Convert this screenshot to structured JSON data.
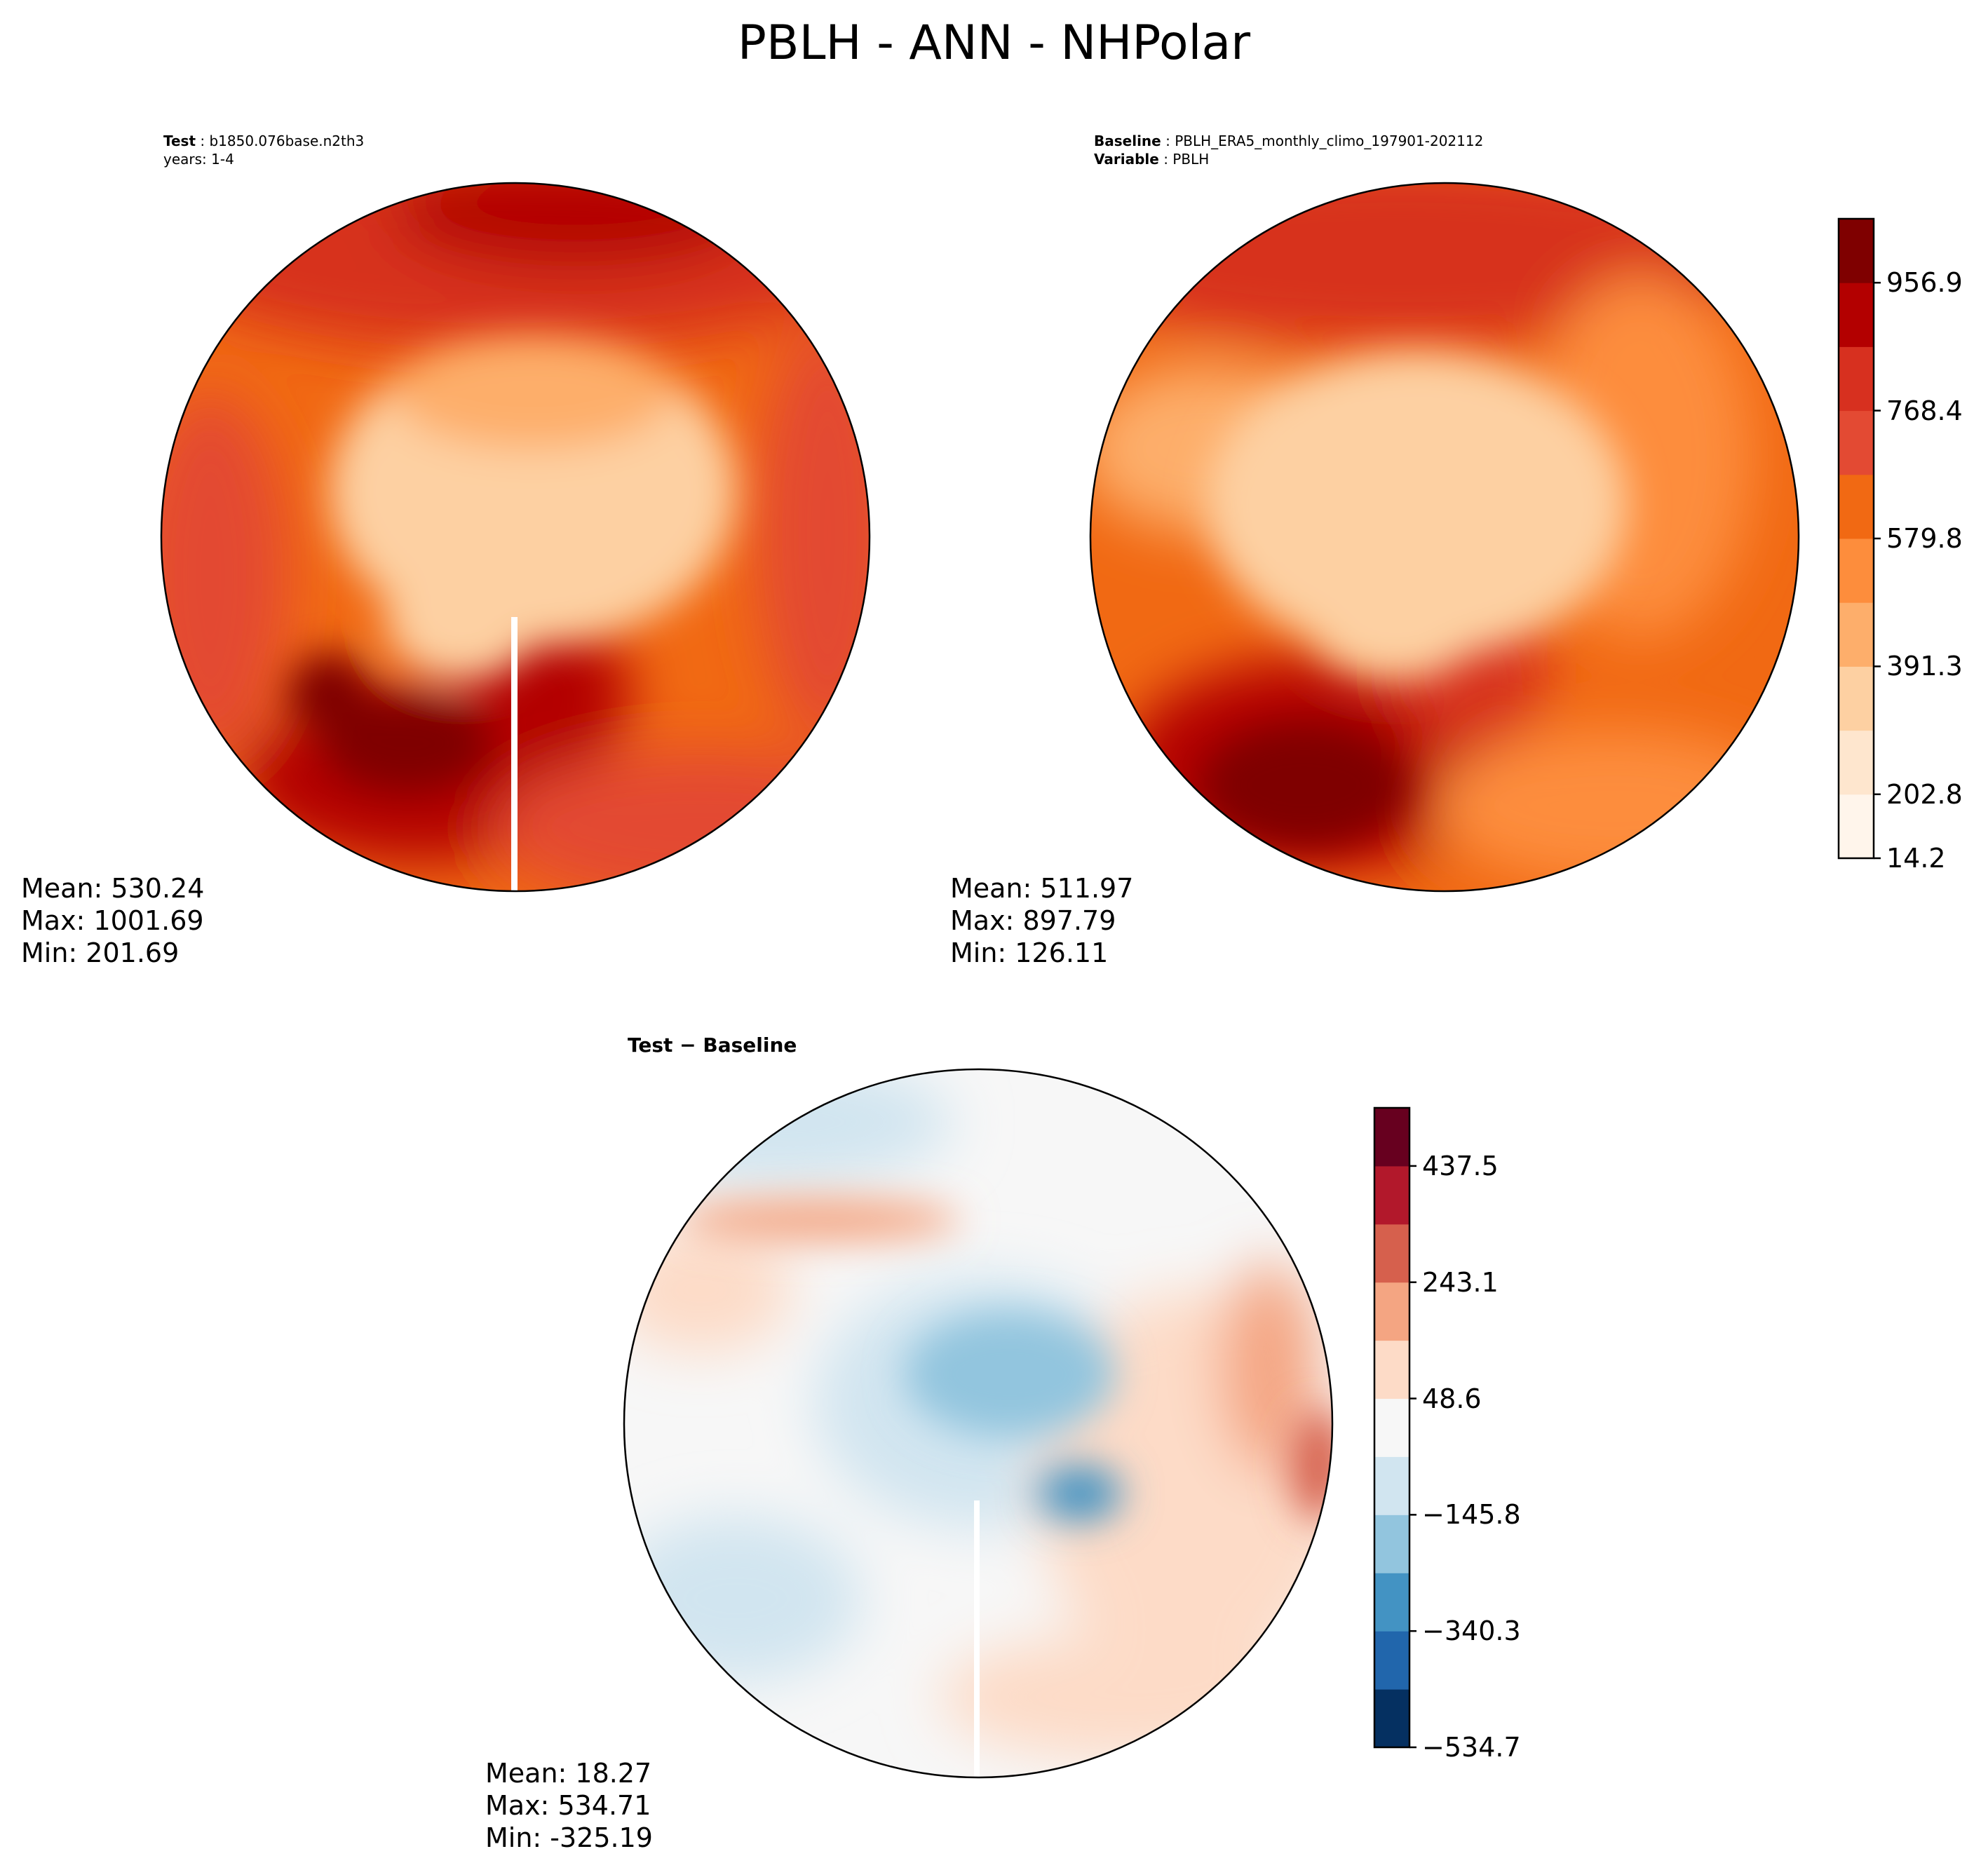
{
  "figure": {
    "title": "PBLH - ANN - NHPolar"
  },
  "panels": {
    "test": {
      "label_bold": "Test",
      "label_value": "b1850.076base.n2th3",
      "years_line": "years: 1-4",
      "stats": {
        "mean": "Mean: 530.24",
        "max": "Max: 1001.69",
        "min": "Min: 201.69"
      },
      "mean_value": 530.24
    },
    "baseline": {
      "label_bold": "Baseline",
      "label_value": "PBLH_ERA5_monthly_climo_197901-202112",
      "var_bold": "Variable",
      "var_value": "PBLH",
      "stats": {
        "mean": "Mean: 511.97",
        "max": "Max: 897.79",
        "min": "Min: 126.11"
      },
      "mean_value": 511.97
    },
    "diff": {
      "title": "Test − Baseline",
      "stats": {
        "mean": "Mean: 18.27",
        "max": "Max: 534.71",
        "min": "Min: -325.19"
      },
      "mean_value": 18.27
    }
  },
  "colorbars": {
    "main": {
      "ticks": [
        "956.9",
        "768.4",
        "579.8",
        "391.3",
        "202.8",
        "14.2"
      ],
      "colors": [
        "#fff5eb",
        "#fee6ce",
        "#fdd0a2",
        "#fdae6b",
        "#fd8d3c",
        "#f16913",
        "#e34a33",
        "#d7301f",
        "#b30000",
        "#7f0000"
      ],
      "range": [
        14.2,
        1051.2
      ]
    },
    "diff": {
      "ticks": [
        "437.5",
        "243.1",
        "48.6",
        "−145.8",
        "−340.3",
        "−534.7"
      ],
      "colors": [
        "#053061",
        "#2166ac",
        "#4393c3",
        "#92c5de",
        "#d1e5f0",
        "#f7f7f7",
        "#fddbc7",
        "#f4a582",
        "#d6604d",
        "#b2182b",
        "#67001f"
      ],
      "range": [
        -534.7,
        534.7
      ]
    }
  },
  "map_colors": {
    "land_outline": "#000000",
    "test_pole": "#fdd0a2",
    "test_mid": "#fd8d3c",
    "test_high": "#b30000",
    "base_pole": "#fdd0a2",
    "base_mid": "#f16913",
    "base_high": "#b30000",
    "diff_neutral": "#f7f7f7",
    "diff_neg": "#92c5de",
    "diff_pos": "#fddbc7"
  }
}
